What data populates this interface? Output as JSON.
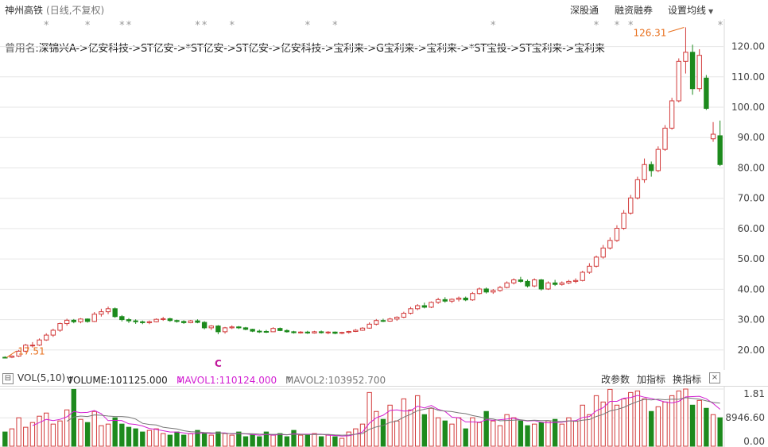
{
  "header": {
    "stock_name": "神州高铁",
    "mode": "(日线,不复权)",
    "btn_connect": "深股通",
    "btn_margin": "融资融券",
    "btn_ma": "设置均线"
  },
  "former_names": {
    "label": "曾用名",
    "value": ":深锦兴A->亿安科技->ST亿安->*ST亿安->ST亿安->亿安科技->宝利来->G宝利来->宝利来->*ST宝投->ST宝利来->宝利来"
  },
  "marker_star": "*",
  "marker_c": "C",
  "volume_panel": {
    "label": "VOL(5,10)",
    "volume": "VOLUME:101125.000",
    "mavol1": "MAVOL1:110124.000",
    "mavol2": "MAVOL2:103952.700",
    "btn_params": "改参数",
    "btn_add": "加指标",
    "btn_switch": "换指标",
    "btn_close": "×",
    "axis_labels": [
      "1.81",
      "8946.60",
      "0.00"
    ]
  },
  "colors": {
    "up": "#d23a3a",
    "down": "#1d8a1d",
    "grid": "#e6e6e6",
    "ma1": "#d21fd2",
    "ma2": "#777777",
    "annot": "#e8701e"
  },
  "chart_data": {
    "type": "candlestick",
    "price_axis": {
      "ticks": [
        20.0,
        30.0,
        40.0,
        50.0,
        60.0,
        70.0,
        80.0,
        90.0,
        100.0,
        110.0,
        120.0
      ],
      "range": [
        15.5,
        128
      ]
    },
    "annotations": {
      "high": 126.31,
      "low": 17.51
    },
    "marker_indices": [
      6,
      12,
      17,
      18,
      28,
      29,
      33,
      44,
      48,
      71,
      86,
      89,
      91
    ],
    "c_marker_index": 31,
    "candles": [
      [
        17.6,
        17.9,
        17.2,
        17.4
      ],
      [
        17.6,
        18.2,
        17.3,
        18.0
      ],
      [
        18.0,
        20.0,
        17.7,
        19.6
      ],
      [
        19.6,
        22.0,
        19.2,
        21.6
      ],
      [
        21.5,
        22.6,
        20.8,
        21.6
      ],
      [
        21.6,
        23.8,
        21.3,
        23.3
      ],
      [
        23.3,
        25.5,
        23.0,
        24.9
      ],
      [
        24.9,
        27.0,
        24.3,
        26.5
      ],
      [
        26.5,
        29.0,
        26.0,
        28.7
      ],
      [
        28.7,
        30.3,
        28.0,
        29.8
      ],
      [
        29.8,
        30.2,
        28.8,
        29.3
      ],
      [
        29.3,
        30.5,
        28.8,
        30.2
      ],
      [
        30.2,
        30.4,
        29.0,
        29.4
      ],
      [
        29.4,
        32.5,
        29.2,
        31.8
      ],
      [
        31.8,
        33.6,
        31.0,
        32.6
      ],
      [
        32.6,
        34.3,
        31.8,
        33.6
      ],
      [
        33.6,
        34.0,
        30.6,
        31.0
      ],
      [
        31.0,
        31.5,
        29.4,
        30.0
      ],
      [
        30.0,
        30.5,
        28.9,
        29.6
      ],
      [
        29.6,
        30.1,
        28.6,
        29.3
      ],
      [
        29.3,
        29.7,
        28.5,
        29.0
      ],
      [
        29.0,
        29.7,
        28.5,
        29.3
      ],
      [
        29.3,
        30.4,
        29.1,
        30.1
      ],
      [
        30.1,
        30.9,
        29.6,
        30.3
      ],
      [
        30.3,
        30.6,
        29.3,
        29.7
      ],
      [
        29.7,
        30.0,
        29.0,
        29.4
      ],
      [
        29.4,
        29.8,
        28.6,
        29.0
      ],
      [
        29.0,
        29.9,
        28.8,
        29.6
      ],
      [
        29.6,
        30.1,
        28.8,
        29.1
      ],
      [
        29.1,
        29.5,
        26.8,
        27.3
      ],
      [
        27.3,
        28.2,
        26.6,
        27.9
      ],
      [
        27.9,
        28.2,
        25.2,
        26.0
      ],
      [
        26.0,
        27.6,
        25.4,
        27.3
      ],
      [
        27.3,
        28.1,
        26.9,
        27.6
      ],
      [
        27.6,
        27.9,
        26.9,
        27.3
      ],
      [
        27.3,
        27.6,
        26.5,
        26.8
      ],
      [
        26.8,
        27.0,
        25.9,
        26.2
      ],
      [
        26.2,
        26.7,
        25.6,
        26.1
      ],
      [
        26.1,
        26.6,
        25.6,
        26.0
      ],
      [
        26.0,
        27.5,
        25.9,
        27.1
      ],
      [
        27.1,
        27.4,
        26.2,
        26.4
      ],
      [
        26.4,
        26.8,
        25.7,
        26.0
      ],
      [
        26.0,
        26.3,
        25.4,
        25.7
      ],
      [
        25.7,
        26.2,
        25.4,
        25.9
      ],
      [
        25.9,
        26.3,
        25.3,
        25.6
      ],
      [
        25.6,
        26.3,
        25.4,
        26.0
      ],
      [
        26.0,
        26.4,
        25.4,
        25.7
      ],
      [
        25.7,
        26.2,
        25.2,
        25.9
      ],
      [
        25.9,
        26.1,
        25.2,
        25.5
      ],
      [
        25.5,
        26.0,
        25.2,
        25.8
      ],
      [
        25.8,
        26.3,
        25.4,
        26.1
      ],
      [
        26.1,
        26.9,
        25.9,
        26.5
      ],
      [
        26.5,
        27.5,
        26.3,
        27.2
      ],
      [
        27.2,
        29.1,
        27.0,
        28.5
      ],
      [
        28.5,
        30.2,
        28.1,
        29.7
      ],
      [
        29.7,
        30.3,
        29.2,
        29.5
      ],
      [
        29.5,
        30.6,
        29.3,
        30.2
      ],
      [
        30.2,
        31.1,
        29.6,
        30.8
      ],
      [
        30.8,
        32.6,
        30.5,
        32.1
      ],
      [
        32.1,
        34.2,
        31.7,
        33.6
      ],
      [
        33.6,
        35.1,
        33.1,
        34.6
      ],
      [
        34.6,
        35.6,
        33.7,
        34.1
      ],
      [
        34.1,
        36.0,
        33.8,
        35.7
      ],
      [
        35.7,
        37.2,
        35.2,
        36.6
      ],
      [
        36.6,
        37.4,
        35.6,
        36.1
      ],
      [
        36.1,
        37.0,
        35.5,
        36.7
      ],
      [
        36.7,
        37.6,
        36.0,
        37.1
      ],
      [
        37.1,
        37.6,
        36.1,
        36.5
      ],
      [
        36.5,
        39.1,
        36.2,
        38.6
      ],
      [
        38.6,
        40.6,
        38.3,
        40.1
      ],
      [
        40.1,
        40.6,
        38.6,
        39.1
      ],
      [
        39.1,
        40.1,
        38.5,
        39.6
      ],
      [
        39.6,
        41.1,
        39.2,
        40.6
      ],
      [
        40.6,
        42.6,
        40.3,
        42.1
      ],
      [
        42.1,
        43.6,
        41.6,
        43.1
      ],
      [
        43.1,
        44.1,
        42.2,
        42.6
      ],
      [
        42.6,
        43.2,
        40.6,
        41.1
      ],
      [
        41.1,
        43.6,
        40.7,
        43.1
      ],
      [
        43.1,
        43.4,
        39.6,
        40.1
      ],
      [
        40.1,
        42.6,
        39.8,
        42.1
      ],
      [
        42.1,
        43.1,
        41.1,
        41.6
      ],
      [
        41.6,
        42.6,
        41.2,
        42.1
      ],
      [
        42.1,
        43.1,
        41.7,
        42.6
      ],
      [
        42.6,
        43.6,
        42.0,
        42.9
      ],
      [
        42.9,
        46.1,
        42.6,
        45.6
      ],
      [
        45.6,
        48.6,
        45.1,
        47.6
      ],
      [
        47.6,
        51.1,
        47.2,
        50.6
      ],
      [
        50.6,
        54.6,
        50.1,
        53.6
      ],
      [
        53.6,
        57.1,
        53.1,
        56.1
      ],
      [
        56.1,
        61.1,
        55.6,
        60.1
      ],
      [
        60.1,
        66.1,
        59.6,
        65.1
      ],
      [
        65.1,
        71.1,
        64.6,
        70.1
      ],
      [
        70.1,
        77.1,
        69.6,
        76.1
      ],
      [
        76.1,
        83.1,
        75.1,
        81.1
      ],
      [
        81.1,
        82.1,
        77.1,
        79.1
      ],
      [
        79.1,
        87.1,
        78.6,
        86.1
      ],
      [
        86.1,
        94.1,
        85.6,
        93.1
      ],
      [
        93.1,
        103.1,
        92.6,
        102.1
      ],
      [
        102.1,
        116.1,
        101.6,
        115.1
      ],
      [
        115.1,
        126.31,
        111.1,
        118.1
      ],
      [
        118.1,
        120.6,
        104.1,
        106.1
      ],
      [
        106.1,
        119.1,
        105.1,
        117.1
      ],
      [
        109.6,
        110.6,
        99.1,
        99.6
      ],
      [
        89.6,
        95.1,
        88.6,
        91.1
      ],
      [
        90.6,
        95.6,
        80.6,
        81.1
      ]
    ],
    "volume": [
      0.45,
      0.55,
      0.9,
      0.6,
      0.75,
      0.95,
      1.05,
      0.7,
      0.8,
      1.15,
      1.8,
      0.85,
      0.75,
      1.1,
      0.65,
      0.7,
      0.9,
      0.7,
      0.6,
      0.55,
      0.45,
      0.5,
      0.55,
      0.4,
      0.35,
      0.45,
      0.35,
      0.4,
      0.5,
      0.4,
      0.35,
      0.45,
      0.4,
      0.35,
      0.45,
      0.3,
      0.35,
      0.3,
      0.45,
      0.35,
      0.4,
      0.3,
      0.5,
      0.35,
      0.35,
      0.4,
      0.3,
      0.35,
      0.3,
      0.25,
      0.45,
      0.55,
      0.7,
      1.7,
      1.1,
      0.85,
      1.3,
      0.8,
      1.5,
      1.15,
      1.6,
      1.0,
      1.2,
      0.9,
      0.8,
      0.7,
      0.9,
      0.55,
      0.9,
      0.75,
      1.1,
      0.8,
      0.65,
      1.0,
      0.9,
      0.8,
      0.65,
      0.7,
      0.75,
      0.8,
      0.85,
      0.7,
      0.9,
      0.8,
      1.3,
      1.0,
      1.6,
      1.4,
      1.8,
      1.3,
      1.5,
      1.7,
      1.75,
      1.5,
      1.1,
      1.25,
      1.4,
      1.6,
      1.75,
      1.81,
      1.3,
      1.45,
      1.2,
      1.0,
      0.9
    ]
  }
}
